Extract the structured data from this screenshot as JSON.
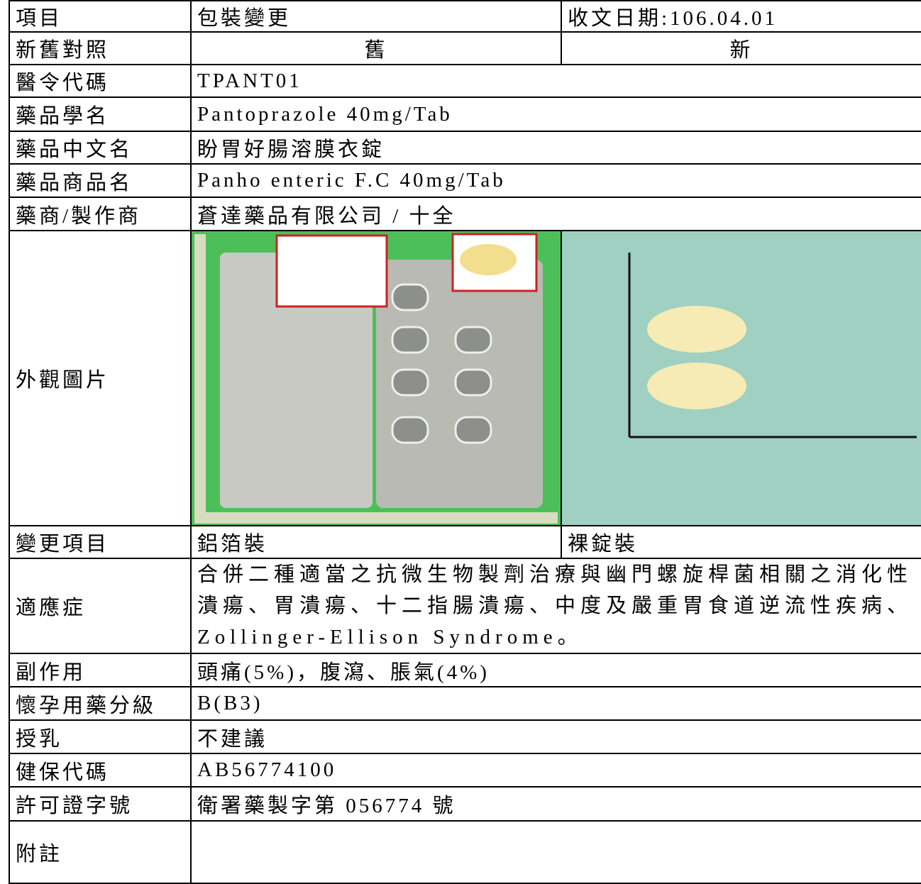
{
  "table": {
    "rows": [
      [
        "項目",
        "包裝變更",
        "收文日期:106.04.01"
      ],
      [
        "新舊對照",
        "舊",
        "新"
      ],
      [
        "醫令代碼",
        "TPANT01"
      ],
      [
        "藥品學名",
        "Pantoprazole 40mg/Tab"
      ],
      [
        "藥品中文名",
        "盼胃好腸溶膜衣錠"
      ],
      [
        "藥品商品名",
        "Panho enteric F.C 40mg/Tab"
      ],
      [
        "藥商/製作商",
        "蒼達藥品有限公司 / 十全"
      ],
      [
        "外觀圖片"
      ],
      [
        "變更項目",
        "鋁箔裝",
        "裸錠裝"
      ],
      [
        "適應症",
        "合併二種適當之抗微生物製劑治療與幽門螺旋桿菌相關之消化性潰瘍、胃潰瘍、十二指腸潰瘍、中度及嚴重胃食道逆流性疾病、Zollinger-Ellison Syndrome。"
      ],
      [
        "副作用",
        "頭痛(5%)，腹瀉、脹氣(4%)"
      ],
      [
        "懷孕用藥分級",
        "B(B3)"
      ],
      [
        "授乳",
        "不建議"
      ],
      [
        "健保代碼",
        "AB56774100"
      ],
      [
        "許可證字號",
        "衛署藥製字第 056774 號"
      ],
      [
        "附註"
      ]
    ]
  }
}
